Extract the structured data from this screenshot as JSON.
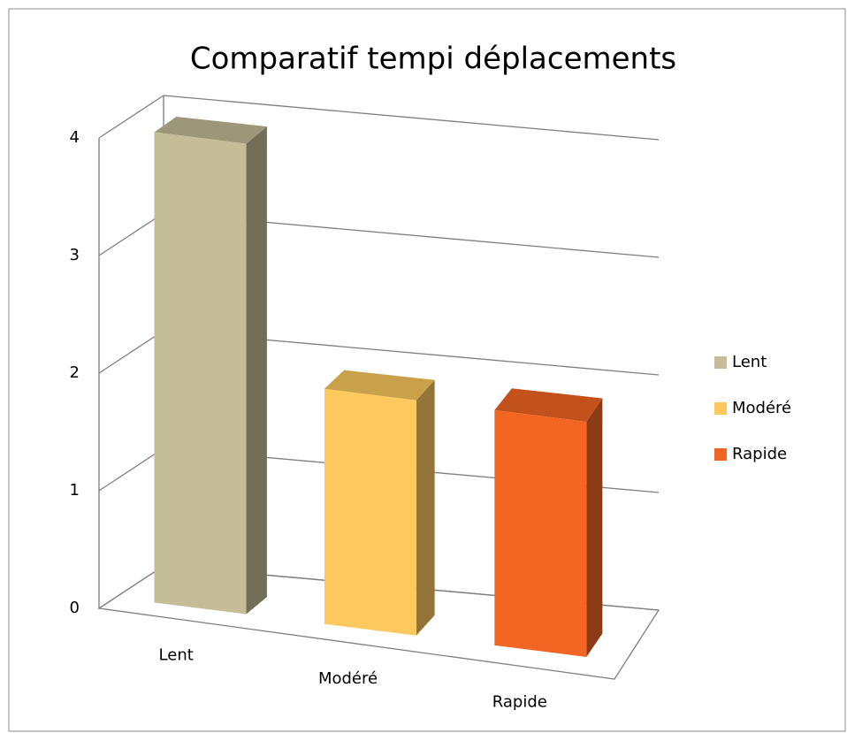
{
  "chart_data": {
    "type": "bar3d",
    "title": "Comparatif tempi déplacements",
    "categories": [
      "Lent",
      "Modéré",
      "Rapide"
    ],
    "series": [
      {
        "name": "Lent",
        "color": "#c4bd97",
        "values": [
          4,
          null,
          null
        ]
      },
      {
        "name": "Modéré",
        "color": "#fdc95e",
        "values": [
          null,
          2,
          null
        ]
      },
      {
        "name": "Rapide",
        "color": "#f26522",
        "values": [
          null,
          null,
          2
        ]
      }
    ],
    "ylim": [
      0,
      4
    ],
    "yticks": [
      0,
      1,
      2,
      3,
      4
    ],
    "grid": true,
    "legend": "right"
  }
}
